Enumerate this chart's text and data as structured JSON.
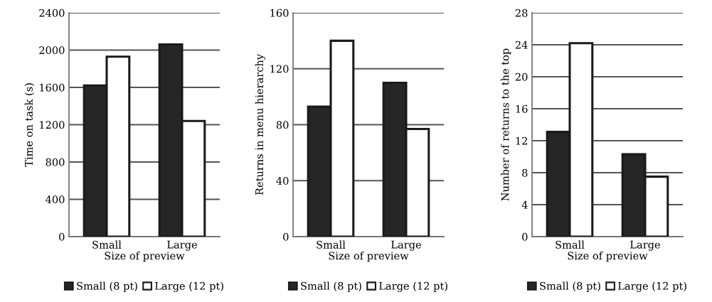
{
  "chart_data": [
    {
      "type": "bar",
      "xlabel": "Size of preview",
      "ylabel": "Time on task (s)",
      "categories": [
        "Small",
        "Large"
      ],
      "series": [
        {
          "name": "Small (8 pt)",
          "color": "#262626",
          "values": [
            1620,
            2060
          ]
        },
        {
          "name": "Large (12 pt)",
          "color": "#ffffff",
          "values": [
            1930,
            1240
          ]
        }
      ],
      "ylim": [
        0,
        2400
      ],
      "yticks": [
        0,
        400,
        800,
        1200,
        1600,
        2000,
        2400
      ],
      "grid": "y",
      "legend": "bottom"
    },
    {
      "type": "bar",
      "xlabel": "Size of preview",
      "ylabel": "Returns in menu hierarchy",
      "categories": [
        "Small",
        "Large"
      ],
      "series": [
        {
          "name": "Small (8 pt)",
          "color": "#262626",
          "values": [
            93,
            110
          ]
        },
        {
          "name": "Large (12 pt)",
          "color": "#ffffff",
          "values": [
            140,
            77
          ]
        }
      ],
      "ylim": [
        0,
        160
      ],
      "yticks": [
        0,
        40,
        80,
        120,
        160
      ],
      "grid": "y",
      "legend": "bottom"
    },
    {
      "type": "bar",
      "xlabel": "Size of preview",
      "ylabel": "Number of returns to the top",
      "categories": [
        "Small",
        "Large"
      ],
      "series": [
        {
          "name": "Small (8 pt)",
          "color": "#262626",
          "values": [
            13.1,
            10.3
          ]
        },
        {
          "name": "Large (12 pt)",
          "color": "#ffffff",
          "values": [
            24.2,
            7.5
          ]
        }
      ],
      "ylim": [
        0,
        28
      ],
      "yticks": [
        0,
        4,
        8,
        12,
        16,
        20,
        24,
        28
      ],
      "grid": "y",
      "legend": "bottom"
    }
  ]
}
